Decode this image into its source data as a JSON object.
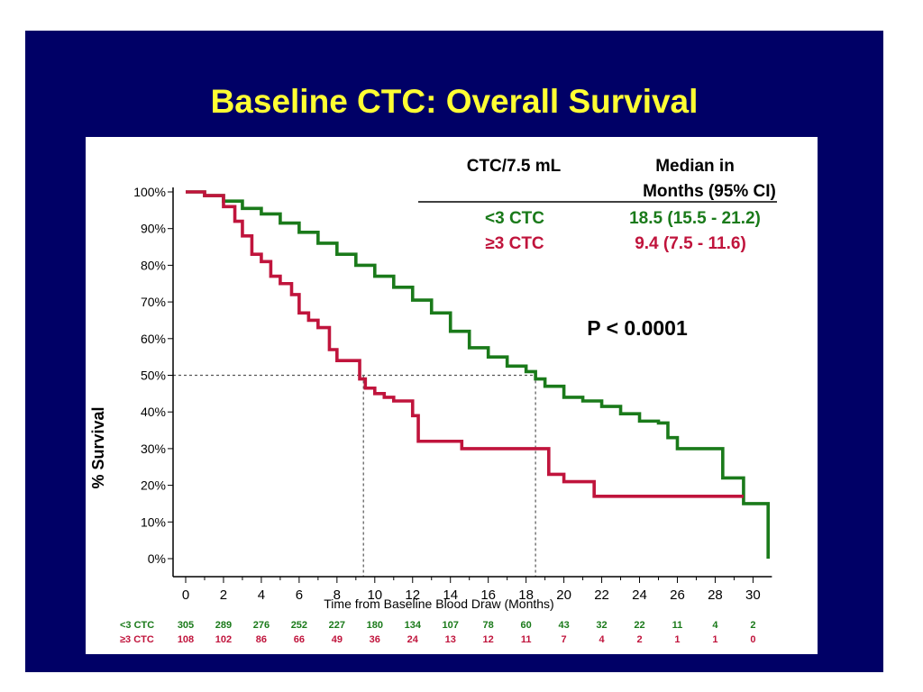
{
  "slide": {
    "title": "Baseline CTC:  Overall Survival"
  },
  "legend": {
    "col1_header": "CTC/7.5 mL",
    "col2_header_line1": "Median in",
    "col2_header_line2": "Months (95% CI)",
    "rows": [
      {
        "label": "<3 CTC",
        "median": "18.5  (15.5 - 21.2)",
        "color": "#1a7a1a"
      },
      {
        "label": "≥3 CTC",
        "median": "9.4  (7.5 - 11.6)",
        "color": "#c0143c"
      }
    ]
  },
  "annotation": {
    "p_value": "P < 0.0001"
  },
  "colors": {
    "background": "#000066",
    "title": "#ffff33",
    "green": "#1a7a1a",
    "red": "#c0143c"
  },
  "chart_data": {
    "type": "line",
    "xlabel": "Time from Baseline Blood Draw (Months)",
    "ylabel": "% Survival",
    "xlim": [
      0,
      31
    ],
    "ylim": [
      0,
      100
    ],
    "x_ticks": [
      0,
      2,
      4,
      6,
      8,
      10,
      12,
      14,
      16,
      18,
      20,
      22,
      24,
      26,
      28,
      30
    ],
    "y_ticks": [
      0,
      10,
      20,
      30,
      40,
      50,
      60,
      70,
      80,
      90,
      100
    ],
    "y_tick_labels": [
      "0%",
      "10%",
      "20%",
      "30%",
      "40%",
      "50%",
      "60%",
      "70%",
      "80%",
      "90%",
      "100%"
    ],
    "reference_y": 50,
    "median_markers_x": [
      9.4,
      18.5
    ],
    "series": [
      {
        "name": "<3 CTC",
        "color": "#1a7a1a",
        "points": [
          [
            0,
            100
          ],
          [
            1,
            99
          ],
          [
            2,
            97.5
          ],
          [
            3,
            95.5
          ],
          [
            4,
            94
          ],
          [
            5,
            91.5
          ],
          [
            6,
            89
          ],
          [
            7,
            86
          ],
          [
            8,
            83
          ],
          [
            9,
            80
          ],
          [
            10,
            77
          ],
          [
            11,
            74
          ],
          [
            12,
            70.5
          ],
          [
            13,
            67
          ],
          [
            14,
            62
          ],
          [
            15,
            57.5
          ],
          [
            16,
            55
          ],
          [
            17,
            52.5
          ],
          [
            18,
            51
          ],
          [
            18.5,
            49
          ],
          [
            19,
            47
          ],
          [
            20,
            44
          ],
          [
            21,
            43
          ],
          [
            22,
            41.5
          ],
          [
            23,
            39.5
          ],
          [
            24,
            37.5
          ],
          [
            25,
            37
          ],
          [
            25.5,
            33
          ],
          [
            26,
            30
          ],
          [
            28,
            30
          ],
          [
            28.4,
            22
          ],
          [
            29.3,
            22
          ],
          [
            29.5,
            15
          ],
          [
            30.8,
            15
          ],
          [
            30.8,
            0
          ]
        ]
      },
      {
        "name": "≥3 CTC",
        "color": "#c0143c",
        "points": [
          [
            0,
            100
          ],
          [
            1,
            99
          ],
          [
            2,
            96
          ],
          [
            2.6,
            92
          ],
          [
            3,
            88
          ],
          [
            3.5,
            83
          ],
          [
            4,
            81
          ],
          [
            4.5,
            77
          ],
          [
            5,
            75
          ],
          [
            5.6,
            72
          ],
          [
            6,
            67
          ],
          [
            6.5,
            65
          ],
          [
            7,
            63
          ],
          [
            7.6,
            57
          ],
          [
            8,
            54
          ],
          [
            8.8,
            54
          ],
          [
            9.2,
            49
          ],
          [
            9.5,
            46.5
          ],
          [
            10,
            45
          ],
          [
            10.5,
            44
          ],
          [
            11,
            43
          ],
          [
            12,
            39
          ],
          [
            12.3,
            32
          ],
          [
            14.5,
            32
          ],
          [
            14.6,
            30
          ],
          [
            18.8,
            30
          ],
          [
            19.2,
            23
          ],
          [
            20,
            21
          ],
          [
            21.5,
            21
          ],
          [
            21.6,
            17
          ],
          [
            29.5,
            17
          ]
        ]
      }
    ],
    "risk_table": {
      "times": [
        0,
        2,
        4,
        6,
        8,
        10,
        12,
        14,
        16,
        18,
        20,
        22,
        24,
        26,
        28,
        30
      ],
      "rows": [
        {
          "label": "<3 CTC",
          "color": "#1a7a1a",
          "counts": [
            305,
            289,
            276,
            252,
            227,
            180,
            134,
            107,
            78,
            60,
            43,
            32,
            22,
            11,
            4,
            2
          ]
        },
        {
          "label": "≥3 CTC",
          "color": "#c0143c",
          "counts": [
            108,
            102,
            86,
            66,
            49,
            36,
            24,
            13,
            12,
            11,
            7,
            4,
            2,
            1,
            1,
            0
          ]
        }
      ]
    }
  }
}
